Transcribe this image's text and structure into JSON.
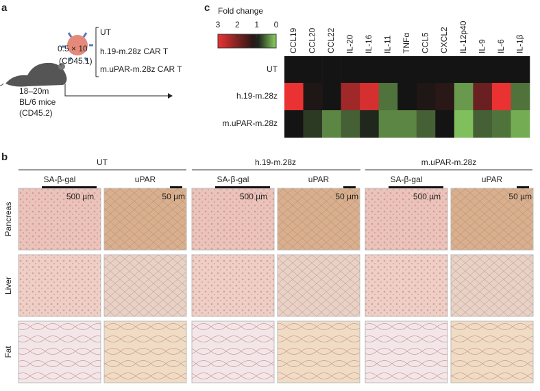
{
  "panel_a": {
    "label": "a",
    "conditions": [
      "UT",
      "h.19-m.28z CAR T",
      "m.uPAR-m.28z CAR T"
    ],
    "dose": "0.5 × 10",
    "cell_marker": "(CD45.1)",
    "mouse": [
      "18–20m",
      "BL/6 mice",
      "(CD45.2)"
    ]
  },
  "panel_b": {
    "label": "b",
    "tissues": [
      "Pancreas",
      "Liver",
      "Fat"
    ],
    "groups": [
      {
        "title": "UT",
        "stains": [
          "SA-β-gal",
          "uPAR"
        ],
        "scales": [
          "500 µm",
          "50 µm"
        ]
      },
      {
        "title": "h.19-m.28z",
        "stains": [
          "SA-β-gal",
          "uPAR"
        ],
        "scales": [
          "500 µm",
          "50 µm"
        ]
      },
      {
        "title": "m.uPAR-m.28z",
        "stains": [
          "SA-β-gal",
          "uPAR"
        ],
        "scales": [
          "500 µm",
          "50 µm"
        ]
      }
    ]
  },
  "panel_c": {
    "label": "c",
    "legend_title": "Fold change",
    "legend_ticks": [
      3,
      2,
      1,
      0
    ],
    "legend_lim": [
      3,
      0
    ],
    "columns": [
      "CCL19",
      "CCL20",
      "CCL22",
      "IL-20",
      "IL-16",
      "IL-11",
      "TNFα",
      "CCL5",
      "CXCL2",
      "IL-12p40",
      "IL-9",
      "IL-6",
      "IL-1β"
    ],
    "rows": [
      {
        "name": "UT",
        "values": [
          1,
          1,
          1,
          1,
          1,
          1,
          1,
          1,
          1,
          1,
          1,
          1,
          1
        ]
      },
      {
        "name": "h.19-m.28z",
        "values": [
          3,
          1.1,
          1,
          2.3,
          2.8,
          0.5,
          1,
          1.1,
          1.2,
          0.3,
          1.8,
          3,
          0.5
        ]
      },
      {
        "name": "m.uPAR-m.28z",
        "values": [
          1,
          0.8,
          0.4,
          0.6,
          0.9,
          0.4,
          0.4,
          0.6,
          1,
          0.1,
          0.6,
          0.5,
          0.2
        ]
      }
    ]
  }
}
